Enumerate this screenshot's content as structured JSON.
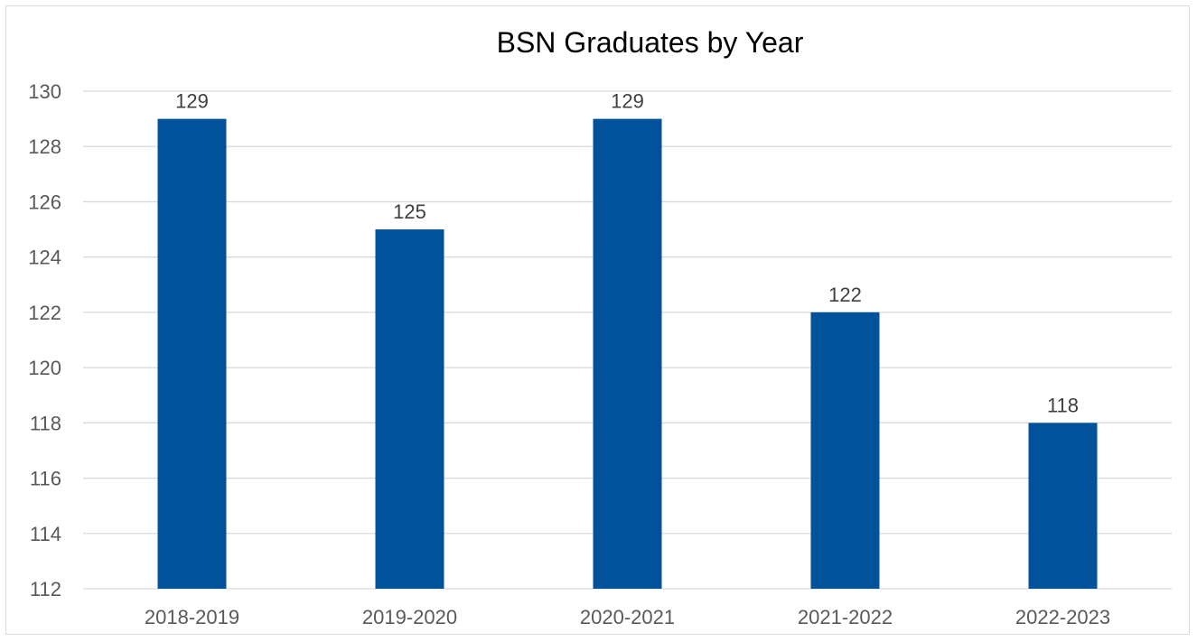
{
  "chart_data": {
    "type": "bar",
    "title": "BSN Graduates by Year",
    "xlabel": "",
    "ylabel": "",
    "categories": [
      "2018-2019",
      "2019-2020",
      "2020-2021",
      "2021-2022",
      "2022-2023"
    ],
    "values": [
      129,
      125,
      129,
      122,
      118
    ],
    "ylim": [
      112,
      130
    ],
    "yticks": [
      112,
      114,
      116,
      118,
      120,
      122,
      124,
      126,
      128,
      130
    ],
    "grid": true,
    "legend": "none",
    "bar_color": "#00529b"
  }
}
